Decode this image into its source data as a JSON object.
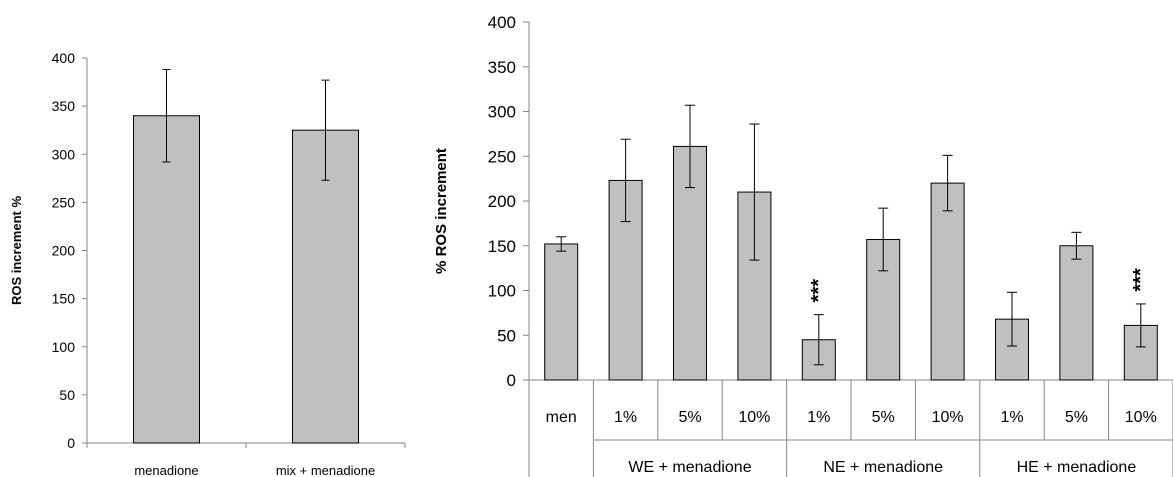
{
  "chart_data": [
    {
      "type": "bar",
      "title": "",
      "xlabel": "",
      "ylabel": "ROS increment %",
      "ylim": [
        0,
        400
      ],
      "yticks": [
        0,
        50,
        100,
        150,
        200,
        250,
        300,
        350,
        400
      ],
      "categories": [
        "menadione",
        "mix + menadione"
      ],
      "values": [
        340,
        325
      ],
      "errors": [
        48,
        52
      ],
      "grid": false,
      "bar_color": "#c0c0c0"
    },
    {
      "type": "bar",
      "title": "",
      "xlabel": "",
      "ylabel": "% ROS increment",
      "ylim": [
        0,
        400
      ],
      "yticks": [
        0,
        50,
        100,
        150,
        200,
        250,
        300,
        350,
        400
      ],
      "categories": [
        "men",
        "1%",
        "5%",
        "10%",
        "1%",
        "5%",
        "10%",
        "1%",
        "5%",
        "10%"
      ],
      "groups": [
        {
          "label": "WE + menadione",
          "span": [
            1,
            3
          ]
        },
        {
          "label": "NE + menadione",
          "span": [
            4,
            6
          ]
        },
        {
          "label": "HE + menadione",
          "span": [
            7,
            9
          ]
        }
      ],
      "values": [
        152,
        223,
        261,
        210,
        45,
        157,
        220,
        68,
        150,
        61
      ],
      "errors": [
        8,
        46,
        46,
        76,
        28,
        35,
        31,
        30,
        15,
        24
      ],
      "annotations": [
        {
          "index": 4,
          "text": "***"
        },
        {
          "index": 9,
          "text": "***"
        }
      ],
      "grid": false,
      "bar_color": "#c0c0c0"
    }
  ]
}
